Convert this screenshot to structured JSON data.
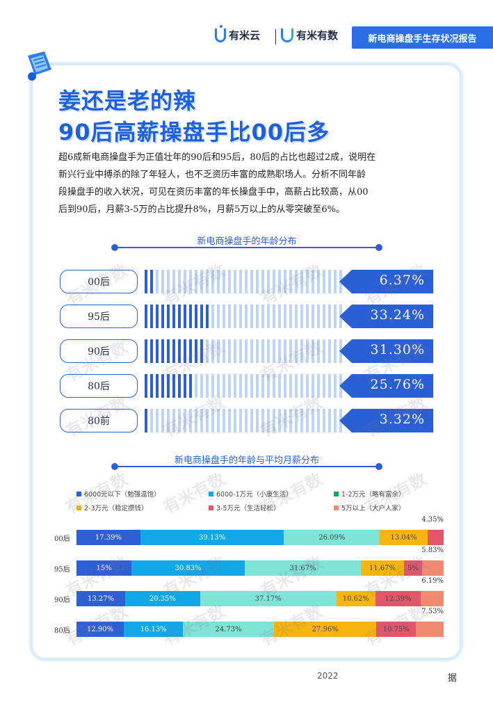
{
  "header": {
    "logo1_text": "有米云",
    "logo2_text": "有米有数",
    "report_title": "新电商操盘手生存状况报告"
  },
  "title": {
    "line1": "姜还是老的辣",
    "line2": "90后高薪操盘手比00后多"
  },
  "intro": [
    "超6成新电商操盘手为正值壮年的90后和95后，80后的占比也超过2成，说明在",
    "新兴行业中搏杀的除了年轻人，也不乏资历丰富的成熟职场人。分析不同年龄",
    "段操盘手的收入状况，可见在资历丰富的年长操盘手中，高薪占比较高，从00",
    "后到90后，月薪3-5万的占比提升8%，月薪5万以上的从零突破至6%。"
  ],
  "age_chart": {
    "title": "新电商操盘手的年龄分布",
    "rows": [
      {
        "label": "00后",
        "value_text": "6.37%",
        "value": 6.37
      },
      {
        "label": "95后",
        "value_text": "33.24%",
        "value": 33.24
      },
      {
        "label": "90后",
        "value_text": "31.30%",
        "value": 31.3
      },
      {
        "label": "80后",
        "value_text": "25.76%",
        "value": 25.76
      },
      {
        "label": "80前",
        "value_text": "3.32%",
        "value": 3.32
      }
    ],
    "colors": {
      "filled": "#2a5fd6",
      "empty": "#bcd5f3",
      "box": "#2a5fd6"
    }
  },
  "salary_chart": {
    "title": "新电商操盘手的年龄与平均月薪分布",
    "legend": [
      {
        "label": "6000元以下（勉强温饱）",
        "color": "#2f5fd3"
      },
      {
        "label": "6000-1万元（小康生活）",
        "color": "#12a7e6"
      },
      {
        "label": "1-2万元（略有富余）",
        "color": "#19a05a"
      },
      {
        "label": "2-3万元（稳定攒钱）",
        "color": "#f6b40e"
      },
      {
        "label": "3-5万元（生活轻松）",
        "color": "#e3566a"
      },
      {
        "label": "5万以上（大户人家）",
        "color": "#f08a70"
      }
    ],
    "segment_colors": [
      "#2f5fd3",
      "#12a7e6",
      "#7fe3d6",
      "#f6b40e",
      "#e3566a",
      "#f08a70"
    ],
    "rows": [
      {
        "label": "00后",
        "values": [
          17.39,
          39.13,
          26.09,
          13.04,
          4.35,
          0
        ],
        "texts": [
          "17.39%",
          "39.13%",
          "26.09%",
          "13.04%",
          "",
          ""
        ],
        "top_text": "4.35%"
      },
      {
        "label": "95后",
        "values": [
          15,
          30.83,
          31.67,
          11.67,
          5,
          5.83
        ],
        "texts": [
          "15%",
          "30.83%",
          "31.67%",
          "11.67%",
          "5%",
          ""
        ],
        "top_text": "5.83%"
      },
      {
        "label": "90后",
        "values": [
          13.27,
          20.35,
          37.17,
          10.62,
          12.39,
          6.19
        ],
        "texts": [
          "13.27%",
          "20.35%",
          "37.17%",
          "10.62%",
          "12.39%",
          ""
        ],
        "top_text": "6.19%"
      },
      {
        "label": "80后",
        "values": [
          12.9,
          16.13,
          24.73,
          27.96,
          10.75,
          7.53
        ],
        "texts": [
          "12.90%",
          "16.13%",
          "24.73%",
          "27.96%",
          "10.75%",
          ""
        ],
        "top_text": "7.53%"
      }
    ]
  },
  "chart_data": [
    {
      "type": "bar",
      "title": "新电商操盘手的年龄分布",
      "categories": [
        "00后",
        "95后",
        "90后",
        "80后",
        "80前"
      ],
      "values": [
        6.37,
        33.24,
        31.3,
        25.76,
        3.32
      ],
      "ylabel": "",
      "xlabel": ""
    },
    {
      "type": "bar",
      "title": "新电商操盘手的年龄与平均月薪分布",
      "categories": [
        "00后",
        "95后",
        "90后",
        "80后"
      ],
      "series": [
        {
          "name": "6000元以下（勉强温饱）",
          "values": [
            17.39,
            15,
            13.27,
            12.9
          ]
        },
        {
          "name": "6000-1万元（小康生活）",
          "values": [
            39.13,
            30.83,
            20.35,
            16.13
          ]
        },
        {
          "name": "1-2万元（略有富余）",
          "values": [
            26.09,
            31.67,
            37.17,
            24.73
          ]
        },
        {
          "name": "2-3万元（稳定攒钱）",
          "values": [
            13.04,
            11.67,
            10.62,
            27.96
          ]
        },
        {
          "name": "3-5万元（生活轻松）",
          "values": [
            4.35,
            5,
            12.39,
            10.75
          ]
        },
        {
          "name": "5万以上（大户人家）",
          "values": [
            0,
            5.83,
            6.19,
            7.53
          ]
        }
      ],
      "stacked": true,
      "legend_position": "top"
    }
  ],
  "footer": {
    "year": "2022",
    "char": "据"
  },
  "watermark": "有米有数"
}
